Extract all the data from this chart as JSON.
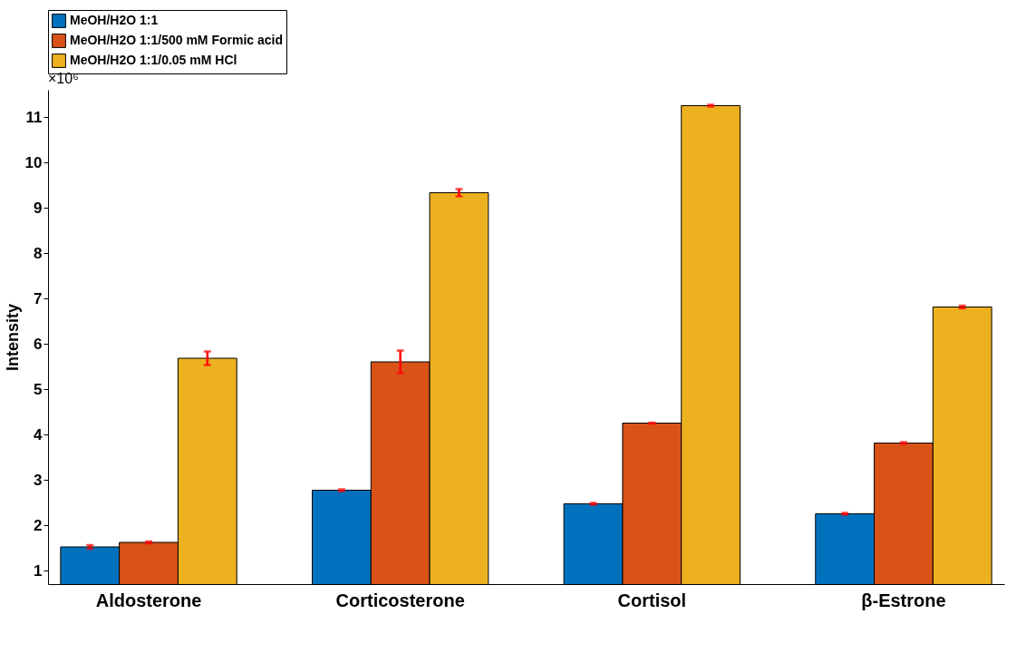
{
  "chart_data": {
    "type": "bar",
    "ylabel": "Intensity",
    "categories": [
      "Aldosterone",
      "Corticosterone",
      "Cortisol",
      "β-Estrone"
    ],
    "series": [
      {
        "name": "MeOH/H2O 1:1",
        "color": "#0072bd",
        "values": [
          1.52,
          2.77,
          2.47,
          2.25
        ],
        "errors": [
          0.04,
          0.02,
          0.02,
          0.02
        ]
      },
      {
        "name": "MeOH/H2O 1:1/500 mM Formic acid",
        "color": "#d95319",
        "values": [
          1.62,
          5.6,
          4.25,
          3.81
        ],
        "errors": [
          0.02,
          0.25,
          0.01,
          0.02
        ]
      },
      {
        "name": "MeOH/H2O 1:1/0.05 mM HCl",
        "color": "#edb120",
        "values": [
          5.68,
          9.33,
          11.25,
          6.81
        ],
        "errors": [
          0.15,
          0.08,
          0.02,
          0.03
        ]
      }
    ],
    "ylim": [
      0.7,
      11.6
    ],
    "yticks": [
      1,
      2,
      3,
      4,
      5,
      6,
      7,
      8,
      9,
      10,
      11
    ],
    "grid": false,
    "legend": "top",
    "annotations": [
      "×10⁶"
    ]
  }
}
